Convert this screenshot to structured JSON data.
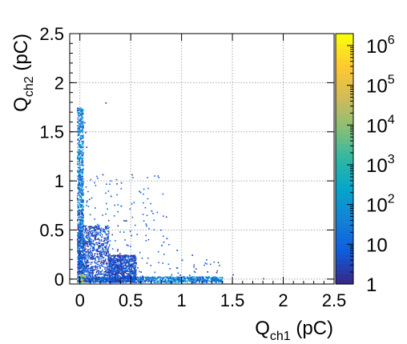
{
  "chart_data": {
    "type": "heatmap",
    "title": "",
    "xlabel": {
      "main": "Q",
      "sub": "ch1",
      "unit": " (pC)"
    },
    "ylabel": {
      "main": "Q",
      "sub": "ch2",
      "unit": " (pC)"
    },
    "xlim": [
      -0.1,
      2.5
    ],
    "ylim": [
      -0.05,
      2.5
    ],
    "grid": true,
    "x_ticks": [
      {
        "value": 0,
        "label": "0"
      },
      {
        "value": 0.5,
        "label": "0.5"
      },
      {
        "value": 1,
        "label": "1"
      },
      {
        "value": 1.5,
        "label": "1.5"
      },
      {
        "value": 2,
        "label": "2"
      },
      {
        "value": 2.5,
        "label": "2.5"
      }
    ],
    "y_ticks": [
      {
        "value": 0,
        "label": "0"
      },
      {
        "value": 0.5,
        "label": "0.5"
      },
      {
        "value": 1,
        "label": "1"
      },
      {
        "value": 1.5,
        "label": "1.5"
      },
      {
        "value": 2,
        "label": "2"
      },
      {
        "value": 2.5,
        "label": "2.5"
      }
    ],
    "colorbar": {
      "scale": "log",
      "range": [
        1,
        2000000
      ],
      "ticks": [
        {
          "value": 1,
          "base": "1",
          "exp": ""
        },
        {
          "value": 10,
          "base": "10",
          "exp": ""
        },
        {
          "value": 100,
          "base": "10",
          "exp": "2"
        },
        {
          "value": 1000,
          "base": "10",
          "exp": "3"
        },
        {
          "value": 10000,
          "base": "10",
          "exp": "4"
        },
        {
          "value": 100000,
          "base": "10",
          "exp": "5"
        },
        {
          "value": 1000000,
          "base": "10",
          "exp": "6"
        }
      ],
      "palette": [
        "#352a87",
        "#0f5cdd",
        "#1481d6",
        "#06a4ca",
        "#2eb7a4",
        "#87bf77",
        "#d1bb59",
        "#fec832",
        "#f9fb0e"
      ]
    },
    "dense_regions": [
      {
        "x": [
          -0.03,
          0.03
        ],
        "y": [
          -0.03,
          1.75
        ],
        "level": 5,
        "desc": "vertical band"
      },
      {
        "x": [
          -0.03,
          1.4
        ],
        "y": [
          -0.03,
          0.03
        ],
        "level": 5,
        "desc": "horizontal band"
      },
      {
        "x": [
          -0.03,
          0.28
        ],
        "y": [
          -0.03,
          0.55
        ],
        "level": 2
      },
      {
        "x": [
          0.28,
          0.55
        ],
        "y": [
          -0.03,
          0.25
        ],
        "level": 1
      },
      {
        "x": [
          -0.03,
          0.05
        ],
        "y": [
          -0.03,
          0.05
        ],
        "level": 9,
        "desc": "pedestal peak"
      }
    ],
    "sparse_points": [
      [
        0.25,
        1.8
      ],
      [
        0.22,
        1.07
      ],
      [
        0.58,
        0.9
      ],
      [
        0.7,
        0.7
      ],
      [
        0.85,
        0.42
      ],
      [
        1.0,
        0.2
      ],
      [
        1.1,
        0.25
      ],
      [
        0.95,
        0.3
      ],
      [
        0.8,
        0.35
      ],
      [
        1.8,
        0.01
      ],
      [
        1.5,
        0.05
      ],
      [
        0.3,
        0.85
      ],
      [
        0.65,
        0.55
      ],
      [
        0.4,
        0.75
      ],
      [
        1.25,
        0.08
      ],
      [
        0.04,
        1.6
      ],
      [
        0.05,
        1.5
      ],
      [
        0.06,
        1.35
      ],
      [
        0.45,
        0.6
      ],
      [
        0.5,
        0.45
      ]
    ]
  }
}
